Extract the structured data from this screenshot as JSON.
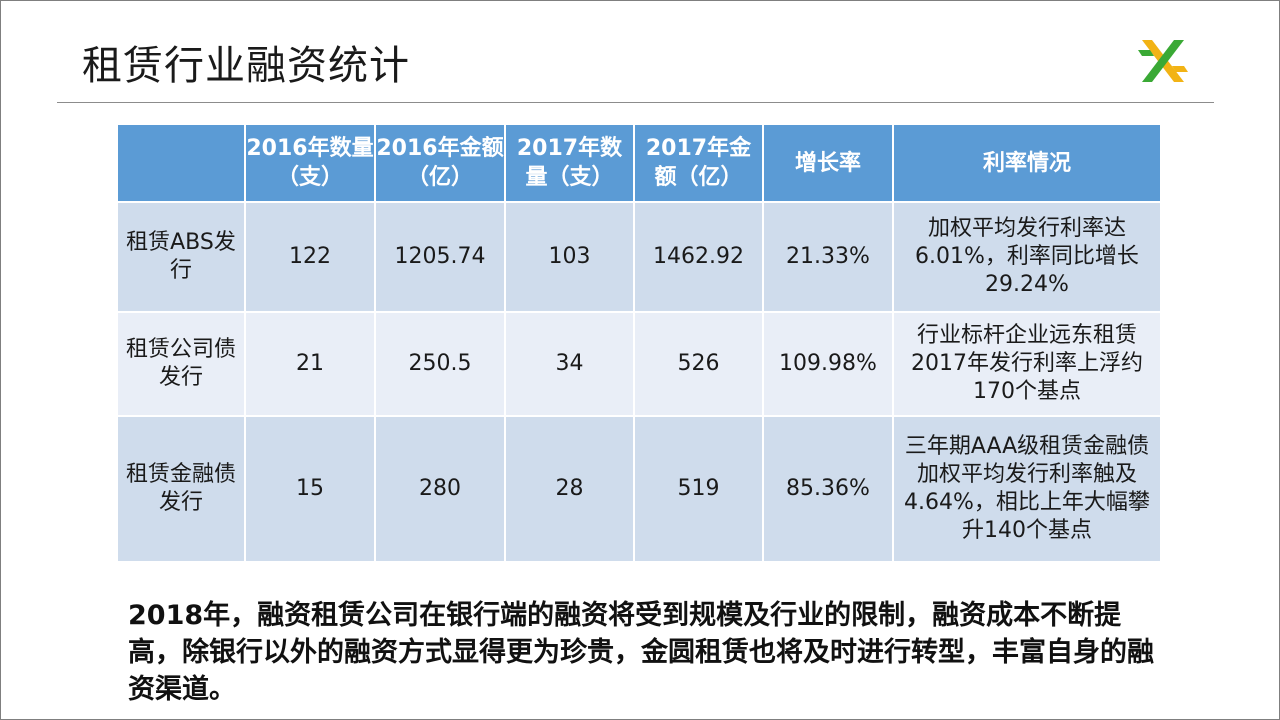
{
  "slide": {
    "title": "租赁行业融资统计",
    "logo": "green-yellow-cross-logo"
  },
  "table": {
    "headers": [
      "",
      "2016年数量（支）",
      "2016年金额（亿）",
      "2017年数量（支）",
      "2017年金额（亿）",
      "增长率",
      "利率情况"
    ],
    "rows": [
      {
        "name": "租赁ABS发行",
        "count_2016": "122",
        "amount_2016": "1205.74",
        "count_2017": "103",
        "amount_2017": "1462.92",
        "growth": "21.33%",
        "rate_info": "加权平均发行利率达6.01%，利率同比增长29.24%"
      },
      {
        "name": "租赁公司债发行",
        "count_2016": "21",
        "amount_2016": "250.5",
        "count_2017": "34",
        "amount_2017": "526",
        "growth": "109.98%",
        "rate_info": "行业标杆企业远东租赁2017年发行利率上浮约170个基点"
      },
      {
        "name": "租赁金融债发行",
        "count_2016": "15",
        "amount_2016": "280",
        "count_2017": "28",
        "amount_2017": "519",
        "growth": "85.36%",
        "rate_info": "三年期AAA级租赁金融债加权平均发行利率触及4.64%，相比上年大幅攀升140个基点"
      }
    ]
  },
  "summary": "2018年，融资租赁公司在银行端的融资将受到规模及行业的限制，融资成本不断提高，除银行以外的融资方式显得更为珍贵，金圆租赁也将及时进行转型，丰富自身的融资渠道。",
  "colors": {
    "header_blue": "#5b9bd5",
    "row_dark": "#cfdcec",
    "row_light": "#e9eef7",
    "logo_green": "#3aa935",
    "logo_yellow": "#f2b315"
  }
}
